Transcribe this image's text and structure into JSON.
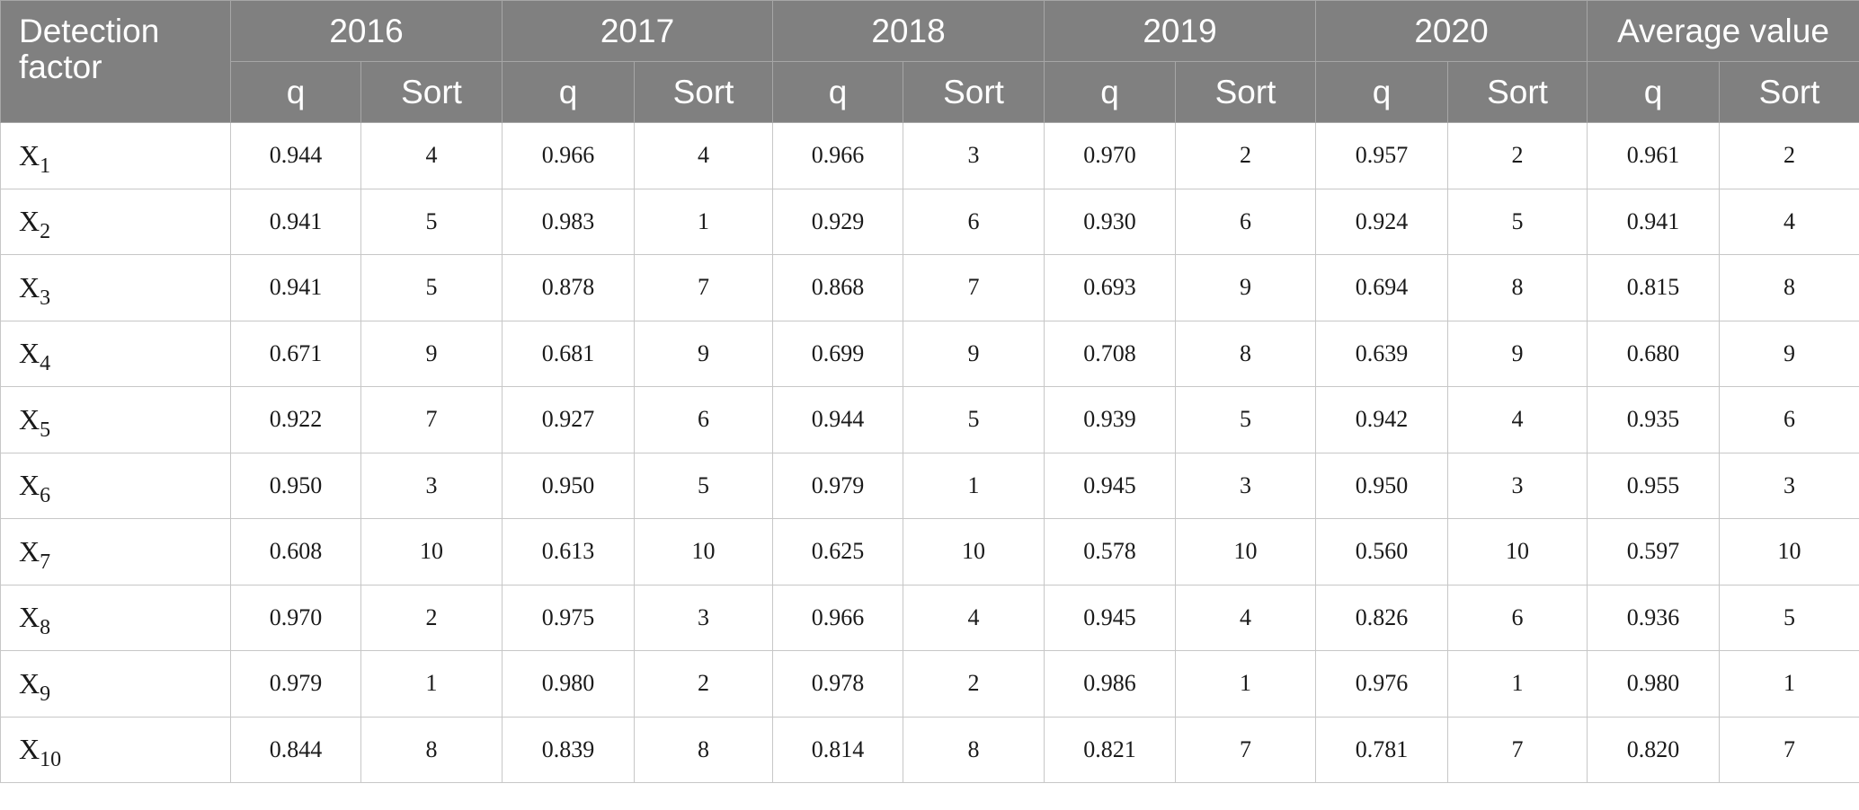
{
  "table": {
    "corner_header": "Detection factor",
    "years": [
      "2016",
      "2017",
      "2018",
      "2019",
      "2020",
      "Average value"
    ],
    "sub_headers": {
      "q": "q",
      "sort": "Sort"
    },
    "rows": [
      {
        "base": "X",
        "sub": "1",
        "values": [
          [
            "0.944",
            "4"
          ],
          [
            "0.966",
            "4"
          ],
          [
            "0.966",
            "3"
          ],
          [
            "0.970",
            "2"
          ],
          [
            "0.957",
            "2"
          ],
          [
            "0.961",
            "2"
          ]
        ]
      },
      {
        "base": "X",
        "sub": "2",
        "values": [
          [
            "0.941",
            "5"
          ],
          [
            "0.983",
            "1"
          ],
          [
            "0.929",
            "6"
          ],
          [
            "0.930",
            "6"
          ],
          [
            "0.924",
            "5"
          ],
          [
            "0.941",
            "4"
          ]
        ]
      },
      {
        "base": "X",
        "sub": "3",
        "values": [
          [
            "0.941",
            "5"
          ],
          [
            "0.878",
            "7"
          ],
          [
            "0.868",
            "7"
          ],
          [
            "0.693",
            "9"
          ],
          [
            "0.694",
            "8"
          ],
          [
            "0.815",
            "8"
          ]
        ]
      },
      {
        "base": "X",
        "sub": "4",
        "values": [
          [
            "0.671",
            "9"
          ],
          [
            "0.681",
            "9"
          ],
          [
            "0.699",
            "9"
          ],
          [
            "0.708",
            "8"
          ],
          [
            "0.639",
            "9"
          ],
          [
            "0.680",
            "9"
          ]
        ]
      },
      {
        "base": "X",
        "sub": "5",
        "values": [
          [
            "0.922",
            "7"
          ],
          [
            "0.927",
            "6"
          ],
          [
            "0.944",
            "5"
          ],
          [
            "0.939",
            "5"
          ],
          [
            "0.942",
            "4"
          ],
          [
            "0.935",
            "6"
          ]
        ]
      },
      {
        "base": "X",
        "sub": "6",
        "values": [
          [
            "0.950",
            "3"
          ],
          [
            "0.950",
            "5"
          ],
          [
            "0.979",
            "1"
          ],
          [
            "0.945",
            "3"
          ],
          [
            "0.950",
            "3"
          ],
          [
            "0.955",
            "3"
          ]
        ]
      },
      {
        "base": "X",
        "sub": "7",
        "values": [
          [
            "0.608",
            "10"
          ],
          [
            "0.613",
            "10"
          ],
          [
            "0.625",
            "10"
          ],
          [
            "0.578",
            "10"
          ],
          [
            "0.560",
            "10"
          ],
          [
            "0.597",
            "10"
          ]
        ]
      },
      {
        "base": "X",
        "sub": "8",
        "values": [
          [
            "0.970",
            "2"
          ],
          [
            "0.975",
            "3"
          ],
          [
            "0.966",
            "4"
          ],
          [
            "0.945",
            "4"
          ],
          [
            "0.826",
            "6"
          ],
          [
            "0.936",
            "5"
          ]
        ]
      },
      {
        "base": "X",
        "sub": "9",
        "values": [
          [
            "0.979",
            "1"
          ],
          [
            "0.980",
            "2"
          ],
          [
            "0.978",
            "2"
          ],
          [
            "0.986",
            "1"
          ],
          [
            "0.976",
            "1"
          ],
          [
            "0.980",
            "1"
          ]
        ]
      },
      {
        "base": "X",
        "sub": "10",
        "values": [
          [
            "0.844",
            "8"
          ],
          [
            "0.839",
            "8"
          ],
          [
            "0.814",
            "8"
          ],
          [
            "0.821",
            "7"
          ],
          [
            "0.781",
            "7"
          ],
          [
            "0.820",
            "7"
          ]
        ]
      }
    ]
  },
  "colors": {
    "header_bg": "#808080",
    "header_text": "#ffffff",
    "border": "#c7c7c7"
  }
}
